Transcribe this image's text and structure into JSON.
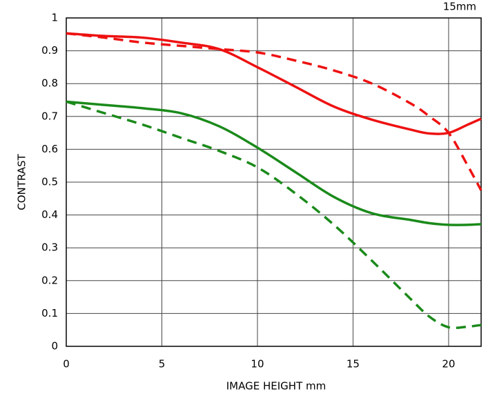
{
  "chart_data": {
    "type": "line",
    "title": "15mm",
    "x_label": "IMAGE HEIGHT   mm",
    "y_label": "CONTRAST",
    "x": [
      0,
      2,
      4,
      6,
      8,
      10,
      12,
      14,
      16,
      18,
      19,
      20,
      21,
      21.7
    ],
    "series": [
      {
        "color": "#ee1111",
        "style": "solid",
        "values": [
          0.953,
          0.945,
          0.94,
          0.925,
          0.905,
          0.85,
          0.79,
          0.73,
          0.69,
          0.66,
          0.648,
          0.65,
          0.675,
          0.693
        ]
      },
      {
        "color": "#ee1111",
        "style": "dashed",
        "values": [
          0.953,
          0.94,
          0.925,
          0.915,
          0.905,
          0.895,
          0.87,
          0.84,
          0.8,
          0.74,
          0.7,
          0.65,
          0.55,
          0.475
        ]
      },
      {
        "color": "#1a8a1a",
        "style": "solid",
        "values": [
          0.745,
          0.735,
          0.725,
          0.71,
          0.67,
          0.605,
          0.53,
          0.455,
          0.405,
          0.385,
          0.375,
          0.37,
          0.37,
          0.372
        ]
      },
      {
        "color": "#1a8a1a",
        "style": "dashed",
        "values": [
          0.745,
          0.71,
          0.675,
          0.635,
          0.595,
          0.545,
          0.465,
          0.37,
          0.26,
          0.145,
          0.09,
          0.058,
          0.06,
          0.065
        ]
      }
    ],
    "xlim": [
      0,
      21.7
    ],
    "xticks": [
      0,
      5,
      10,
      15,
      20
    ],
    "ylim": [
      0,
      1
    ],
    "yticks": [
      0,
      0.1,
      0.2,
      0.3,
      0.4,
      0.5,
      0.6,
      0.7,
      0.8,
      0.9,
      1
    ],
    "grid": true
  }
}
